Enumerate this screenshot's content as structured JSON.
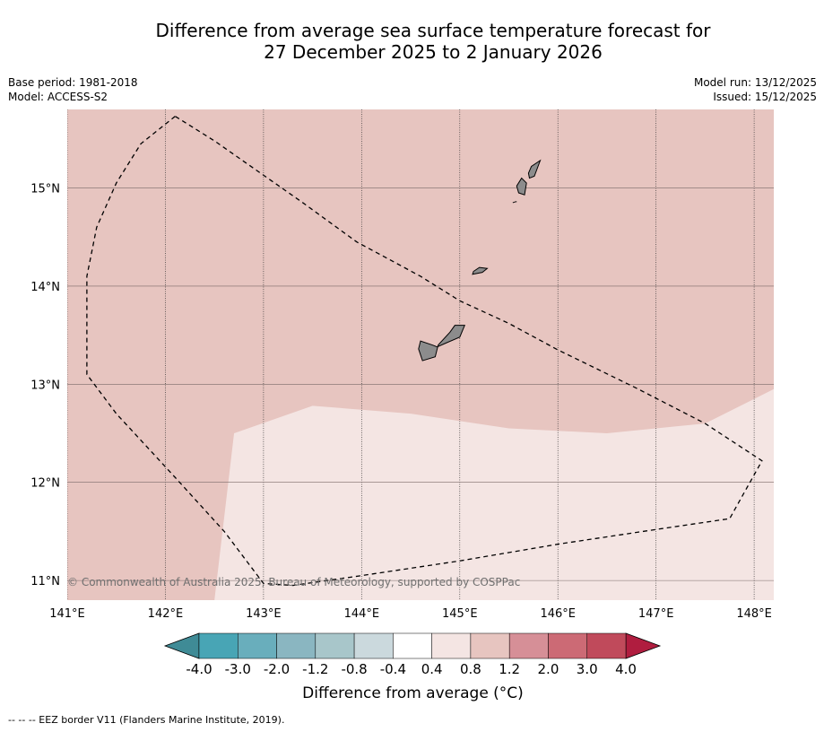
{
  "title": {
    "line1": "Difference from average sea surface temperature forecast for",
    "line2": "27 December 2025 to 2 January 2026"
  },
  "meta": {
    "base_period": "Base period: 1981-2018",
    "model": "Model: ACCESS-S2",
    "model_run": "Model run: 13/12/2025",
    "issued": "Issued: 15/12/2025"
  },
  "map": {
    "lon_range": [
      141.0,
      148.2
    ],
    "lat_range": [
      10.8,
      15.8
    ],
    "lon_ticks": [
      141,
      142,
      143,
      144,
      145,
      146,
      147,
      148
    ],
    "lat_ticks": [
      11,
      12,
      13,
      14,
      15
    ],
    "lon_labels": [
      "141°E",
      "142°E",
      "143°E",
      "144°E",
      "145°E",
      "146°E",
      "147°E",
      "148°E"
    ],
    "lat_labels": [
      "11°N",
      "12°N",
      "13°N",
      "14°N",
      "15°N"
    ],
    "region_north_color": "#e7c5c0",
    "region_south_color": "#f4e5e3",
    "region_south_label": "0.4 to 0.8",
    "region_north_label": "0.8 to 1.2",
    "land_color": "#8c8c8c",
    "copyright": "© Commonwealth of Australia 2025, Bureau of Meteorology, supported by COSPPac",
    "anomaly_boundary": [
      [
        142.5,
        10.8
      ],
      [
        142.7,
        12.5
      ],
      [
        143.5,
        12.78
      ],
      [
        144.5,
        12.7
      ],
      [
        145.5,
        12.55
      ],
      [
        146.5,
        12.5
      ],
      [
        147.5,
        12.6
      ],
      [
        148.2,
        12.95
      ]
    ],
    "eez_border": [
      [
        142.1,
        15.73
      ],
      [
        141.75,
        15.45
      ],
      [
        141.5,
        15.05
      ],
      [
        141.3,
        14.6
      ],
      [
        141.2,
        14.1
      ],
      [
        141.2,
        13.5
      ],
      [
        141.2,
        13.1
      ],
      [
        141.5,
        12.7
      ],
      [
        142.1,
        12.05
      ],
      [
        142.6,
        11.5
      ],
      [
        143.0,
        10.97
      ],
      [
        143.3,
        10.95
      ],
      [
        144.0,
        11.05
      ],
      [
        145.0,
        11.2
      ],
      [
        146.0,
        11.37
      ],
      [
        147.0,
        11.52
      ],
      [
        147.75,
        11.63
      ],
      [
        148.08,
        12.22
      ],
      [
        147.5,
        12.6
      ],
      [
        146.8,
        12.96
      ],
      [
        146.0,
        13.35
      ],
      [
        145.5,
        13.62
      ],
      [
        145.0,
        13.85
      ],
      [
        144.6,
        14.1
      ],
      [
        143.95,
        14.45
      ],
      [
        143.4,
        14.85
      ],
      [
        142.9,
        15.2
      ],
      [
        142.5,
        15.48
      ],
      [
        142.1,
        15.73
      ]
    ],
    "islands": [
      {
        "name": "Guam",
        "shape": [
          [
            144.62,
            13.24
          ],
          [
            144.75,
            13.28
          ],
          [
            144.78,
            13.4
          ],
          [
            144.9,
            13.53
          ],
          [
            144.95,
            13.6
          ],
          [
            145.05,
            13.6
          ],
          [
            145.0,
            13.48
          ],
          [
            144.86,
            13.42
          ],
          [
            144.77,
            13.38
          ],
          [
            144.72,
            13.4
          ],
          [
            144.6,
            13.44
          ],
          [
            144.58,
            13.36
          ],
          [
            144.62,
            13.24
          ]
        ]
      },
      {
        "name": "Rota",
        "shape": [
          [
            145.13,
            14.12
          ],
          [
            145.23,
            14.14
          ],
          [
            145.28,
            14.18
          ],
          [
            145.2,
            14.19
          ],
          [
            145.14,
            14.15
          ],
          [
            145.13,
            14.12
          ]
        ]
      },
      {
        "name": "Tinian",
        "shape": [
          [
            145.6,
            14.95
          ],
          [
            145.66,
            14.93
          ],
          [
            145.68,
            15.05
          ],
          [
            145.63,
            15.1
          ],
          [
            145.58,
            15.02
          ],
          [
            145.6,
            14.95
          ]
        ]
      },
      {
        "name": "Saipan",
        "shape": [
          [
            145.71,
            15.1
          ],
          [
            145.76,
            15.12
          ],
          [
            145.82,
            15.28
          ],
          [
            145.73,
            15.22
          ],
          [
            145.7,
            15.15
          ],
          [
            145.71,
            15.1
          ]
        ]
      },
      {
        "name": "Aguijan",
        "shape": [
          [
            145.54,
            14.85
          ],
          [
            145.57,
            14.86
          ],
          [
            145.58,
            14.86
          ]
        ]
      }
    ]
  },
  "colorbar": {
    "bounds": [
      -4.0,
      -3.0,
      -2.0,
      -1.2,
      -0.8,
      -0.4,
      0.4,
      0.8,
      1.2,
      2.0,
      3.0,
      4.0
    ],
    "tick_labels": [
      "-4.0",
      "-3.0",
      "-2.0",
      "-1.2",
      "-0.8",
      "-0.4",
      "0.4",
      "0.8",
      "1.2",
      "2.0",
      "3.0",
      "4.0"
    ],
    "colors": [
      "#48a5b5",
      "#69aebc",
      "#8ab6c1",
      "#a8c6ca",
      "#cbd9dd",
      "#ffffff",
      "#f4e5e3",
      "#e7c5c0",
      "#d68f97",
      "#cc6a75",
      "#c04a5b"
    ],
    "low_extend_color": "#3f8b96",
    "high_extend_color": "#b01d3f",
    "label": "Difference from average (°C)"
  },
  "footer": {
    "eez_legend": "--  --  -- EEZ border V11 (Flanders Marine Institute, 2019)."
  }
}
